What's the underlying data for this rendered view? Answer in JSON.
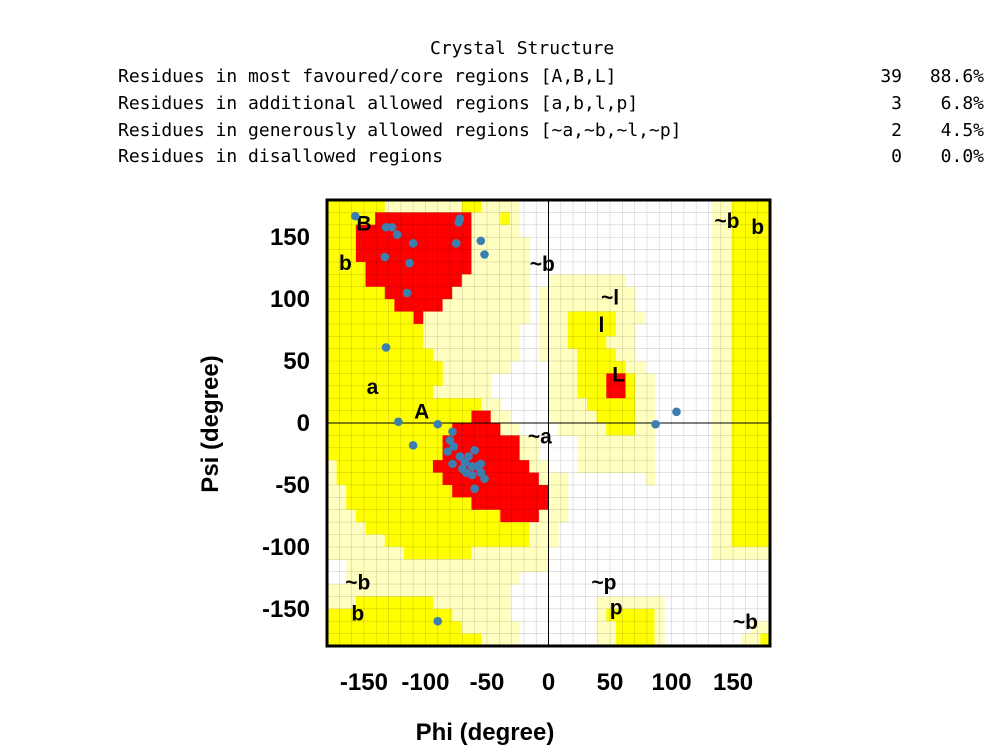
{
  "stats": {
    "title": "Crystal Structure",
    "rows": [
      {
        "label": "Residues in most favoured/core regions [A,B,L]",
        "count": "39",
        "percent": "88.6%"
      },
      {
        "label": "Residues in additional allowed regions [a,b,l,p]",
        "count": "3",
        "percent": "6.8%"
      },
      {
        "label": "Residues in generously allowed regions [~a,~b,~l,~p]",
        "count": "2",
        "percent": "4.5%"
      },
      {
        "label": "Residues in disallowed regions",
        "count": "0",
        "percent": "0.0%"
      }
    ]
  },
  "chart_data": {
    "type": "scatter",
    "xlabel": "Phi (degree)",
    "ylabel": "Psi (degree)",
    "xlim": [
      -180,
      180
    ],
    "ylim": [
      -180,
      180
    ],
    "x_ticks": [
      -150,
      -100,
      -50,
      0,
      50,
      100,
      150
    ],
    "y_ticks": [
      -150,
      -100,
      -50,
      0,
      50,
      100,
      150
    ],
    "x_tick_labels": [
      "-150",
      "-100",
      "-50",
      "0",
      "50",
      "100",
      "150"
    ],
    "y_tick_labels": [
      "-150",
      "-100",
      "-50",
      "0",
      "50",
      "100",
      "150"
    ],
    "grid": true,
    "region_colors": {
      "core": "#ff0000",
      "allowed": "#ffff00",
      "generous": "#ffffc0",
      "disallowed": "#ffffff"
    },
    "point_color": "#3a7fb0",
    "region_labels": [
      {
        "text": "B",
        "x": -150,
        "y": 160
      },
      {
        "text": "b",
        "x": -165,
        "y": 128
      },
      {
        "text": "a",
        "x": -143,
        "y": 28
      },
      {
        "text": "A",
        "x": -103,
        "y": 8
      },
      {
        "text": "~b",
        "x": -5,
        "y": 127
      },
      {
        "text": "~l",
        "x": 50,
        "y": 100
      },
      {
        "text": "l",
        "x": 43,
        "y": 78
      },
      {
        "text": "L",
        "x": 57,
        "y": 38
      },
      {
        "text": "~a",
        "x": -7,
        "y": -12
      },
      {
        "text": "~b",
        "x": -155,
        "y": -130
      },
      {
        "text": "b",
        "x": -155,
        "y": -155
      },
      {
        "text": "~p",
        "x": 45,
        "y": -130
      },
      {
        "text": "p",
        "x": 55,
        "y": -150
      },
      {
        "text": "~b",
        "x": 145,
        "y": 162
      },
      {
        "text": "b",
        "x": 170,
        "y": 157
      },
      {
        "text": "~b",
        "x": 160,
        "y": -162
      }
    ],
    "points": [
      {
        "x": -157,
        "y": 167
      },
      {
        "x": -132,
        "y": 158
      },
      {
        "x": -127,
        "y": 158
      },
      {
        "x": -123,
        "y": 152
      },
      {
        "x": -110,
        "y": 145
      },
      {
        "x": -113,
        "y": 129
      },
      {
        "x": -133,
        "y": 134
      },
      {
        "x": -115,
        "y": 105
      },
      {
        "x": -72,
        "y": 165
      },
      {
        "x": -73,
        "y": 162
      },
      {
        "x": -75,
        "y": 145
      },
      {
        "x": -55,
        "y": 147
      },
      {
        "x": -52,
        "y": 136
      },
      {
        "x": -132,
        "y": 61
      },
      {
        "x": -122,
        "y": 1
      },
      {
        "x": -90,
        "y": -1
      },
      {
        "x": -110,
        "y": -18
      },
      {
        "x": -78,
        "y": -7
      },
      {
        "x": -80,
        "y": -14
      },
      {
        "x": -77,
        "y": -19
      },
      {
        "x": -82,
        "y": -23
      },
      {
        "x": -78,
        "y": -33
      },
      {
        "x": -72,
        "y": -27
      },
      {
        "x": -70,
        "y": -37
      },
      {
        "x": -67,
        "y": -40
      },
      {
        "x": -65,
        "y": -27
      },
      {
        "x": -62,
        "y": -35
      },
      {
        "x": -62,
        "y": -42
      },
      {
        "x": -58,
        "y": -35
      },
      {
        "x": -60,
        "y": -53
      },
      {
        "x": -55,
        "y": -33
      },
      {
        "x": -55,
        "y": -40
      },
      {
        "x": -52,
        "y": -45
      },
      {
        "x": -60,
        "y": -22
      },
      {
        "x": -68,
        "y": -32
      },
      {
        "x": 87,
        "y": -1
      },
      {
        "x": 104,
        "y": 9
      },
      {
        "x": -90,
        "y": -160
      }
    ],
    "regions": {
      "core_row_fraction_note": "approximate region map, rows = psi from 180 down to -180 in 10 degree steps, cols = phi from -180 to 180 in 10 degree steps",
      "grid_rows": [
        "2222221111111122111100000000000000000000112222",
        "2222233333333331112100000000000000000000112222",
        "2223333333333331111100000000000000000000112222",
        "2223333333333331111110000000000000000000112222",
        "2223333333333331111110000000000000000000112222",
        "2222333333333331111110000000000000000000112222",
        "2222333333333311111110011111111000000000112222",
        "2222223333333111111110111111111100000000112222",
        "2222222333331111111110111111111100000000112222",
        "2222222223111111111110111222221110000000112222",
        "2222222222111111111100111222221100000000112222",
        "2222222222111111111100111222211100000000112222",
        "2222222222211111111100111122221100000000112222",
        "2222222222221111111000011122222110000000112222",
        "2222222222221111100000011122233211000000112222",
        "2222222222211111100000011122233211000000112222",
        "2222222222222222110000011112222211000000112222",
        "2222222222222223311000011111222211000000112222",
        "2222222222222333331100001111122211000000112222",
        "2222222222223333333311000011111111000000112222",
        "2222222222223333333311000011111111000000112222",
        "1222222222233333333331100011111111000000112222",
        "1222222222223333333333111000000001000000112222",
        "1122222222222333333333311000000000000000112222",
        "1122222222222223333333311000000000000000112222",
        "1112222222222222223333111000000000000000112222",
        "1111222222222222222221110000000000000000112222",
        "1111112222222222222221110000000000000000112222",
        "1111111122222221111111100000000000000000111111",
        "0011111111111111111111100000000000000000000000",
        "0011111111111111111100000000000000000000000000",
        "1111111111111111111000000000000000000000000000",
        "1112222222211111111000000000111111100000000000",
        "2222222222222111111000000000122222100000000000",
        "2222222222222211111100000000112222100000000011",
        "2222222222222222111100000000112222100000000112"
      ]
    }
  }
}
